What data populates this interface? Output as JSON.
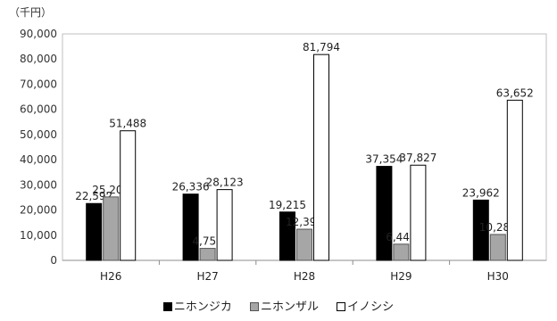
{
  "chart_data": {
    "type": "bar",
    "unit_label": "（千円）",
    "categories": [
      "H26",
      "H27",
      "H28",
      "H29",
      "H30"
    ],
    "series": [
      {
        "name": "ニホンジカ",
        "values": [
          22592,
          26336,
          19215,
          37354,
          23962
        ],
        "color": "#000000",
        "stroke": "#000000"
      },
      {
        "name": "ニホンザル",
        "values": [
          25208,
          4759,
          12390,
          6441,
          10289
        ],
        "color": "#a6a6a6",
        "stroke": "#555555"
      },
      {
        "name": "イノシシ",
        "values": [
          51488,
          28123,
          81794,
          37827,
          63652
        ],
        "color": "#ffffff",
        "stroke": "#000000"
      }
    ],
    "data_labels": [
      [
        "22,592",
        "26,336",
        "19,215",
        "37,354",
        "23,962"
      ],
      [
        "25,208",
        "4,759",
        "12,390",
        "6,441",
        "10,289"
      ],
      [
        "51,488",
        "28,123",
        "81,794",
        "37,827",
        "63,652"
      ]
    ],
    "ylim": [
      0,
      90000
    ],
    "yticks": [
      0,
      10000,
      20000,
      30000,
      40000,
      50000,
      60000,
      70000,
      80000,
      90000
    ],
    "ytick_labels": [
      "0",
      "10,000",
      "20,000",
      "30,000",
      "40,000",
      "50,000",
      "60,000",
      "70,000",
      "80,000",
      "90,000"
    ],
    "grid": false,
    "legend_position": "bottom"
  }
}
